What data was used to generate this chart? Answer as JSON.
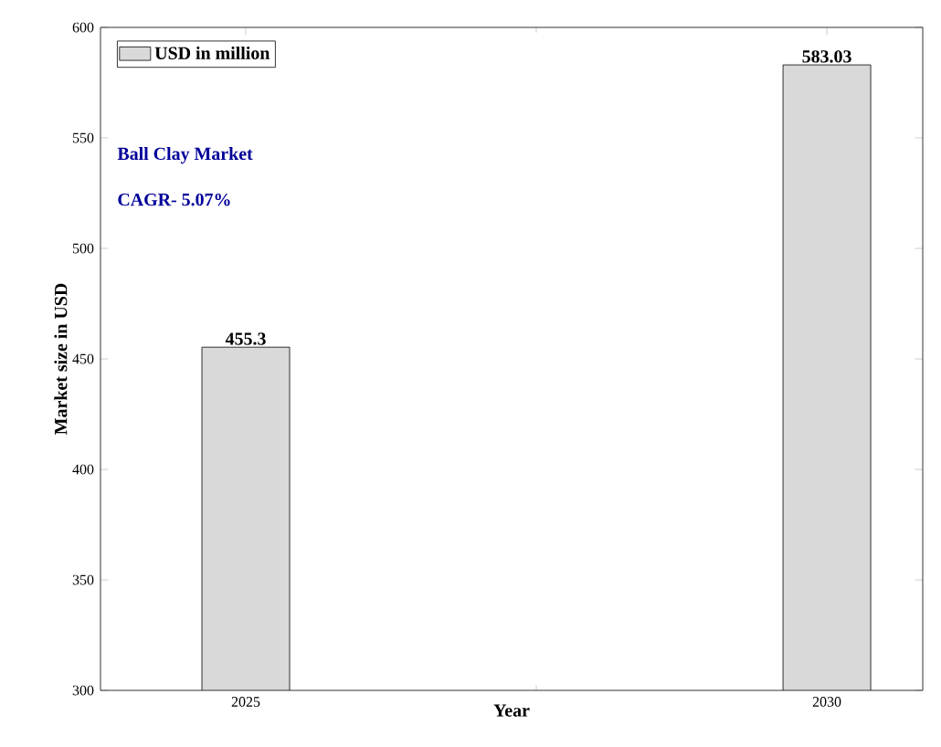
{
  "chart_data": {
    "type": "bar",
    "categories": [
      "2025",
      "2030"
    ],
    "series": [
      {
        "name": "USD in million",
        "color": "#d9d9d9",
        "values": [
          455.3,
          583.03
        ]
      }
    ],
    "xlabel": "Year",
    "ylabel": "Market size in USD",
    "ylim": [
      300,
      600
    ],
    "yticks": [
      300,
      350,
      400,
      450,
      500,
      550,
      600
    ],
    "data_labels": true,
    "legend": "top left",
    "grid": false,
    "annotations": [
      "Ball Clay Market",
      "CAGR- 5.07%"
    ]
  }
}
